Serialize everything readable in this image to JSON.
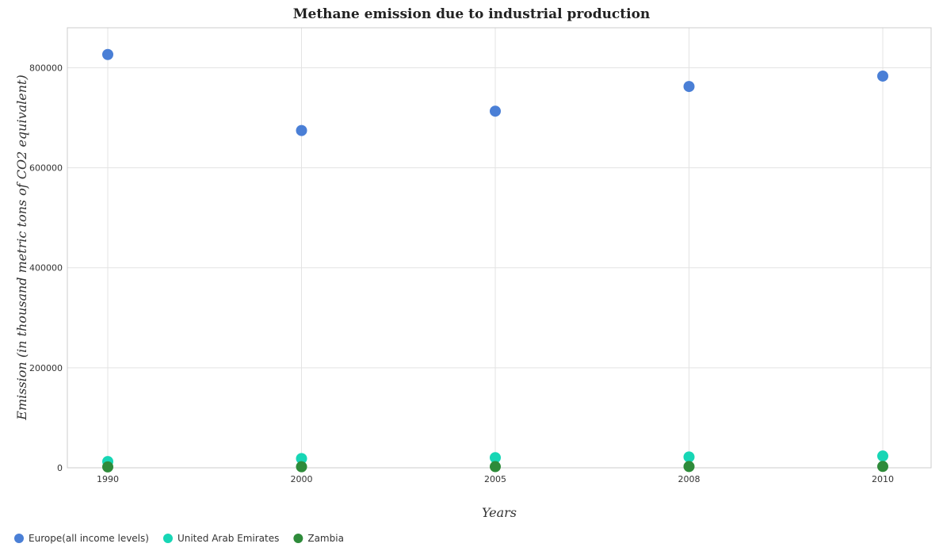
{
  "chart_data": {
    "type": "scatter",
    "title": "Methane emission due to industrial production",
    "xlabel": "Years",
    "ylabel": "Emission (in thousand metric tons of CO2 equivalent)",
    "categories": [
      "1990",
      "2000",
      "2005",
      "2008",
      "2010"
    ],
    "ylim": [
      0,
      880000
    ],
    "yticks": [
      0,
      200000,
      400000,
      600000,
      800000
    ],
    "ytick_labels": [
      "0",
      "200000",
      "400000",
      "600000",
      "800000"
    ],
    "grid": true,
    "legend_position": "bottom-left",
    "series": [
      {
        "name": "Europe(all income levels)",
        "color": "#4a7fd6",
        "values": [
          826500,
          674500,
          713200,
          762500,
          783300
        ]
      },
      {
        "name": "United Arab Emirates",
        "color": "#17d6b5",
        "values": [
          12500,
          18500,
          20200,
          21700,
          23500
        ]
      },
      {
        "name": "Zambia",
        "color": "#2e8b3a",
        "values": [
          1800,
          2100,
          2300,
          2500,
          2700
        ]
      }
    ]
  }
}
